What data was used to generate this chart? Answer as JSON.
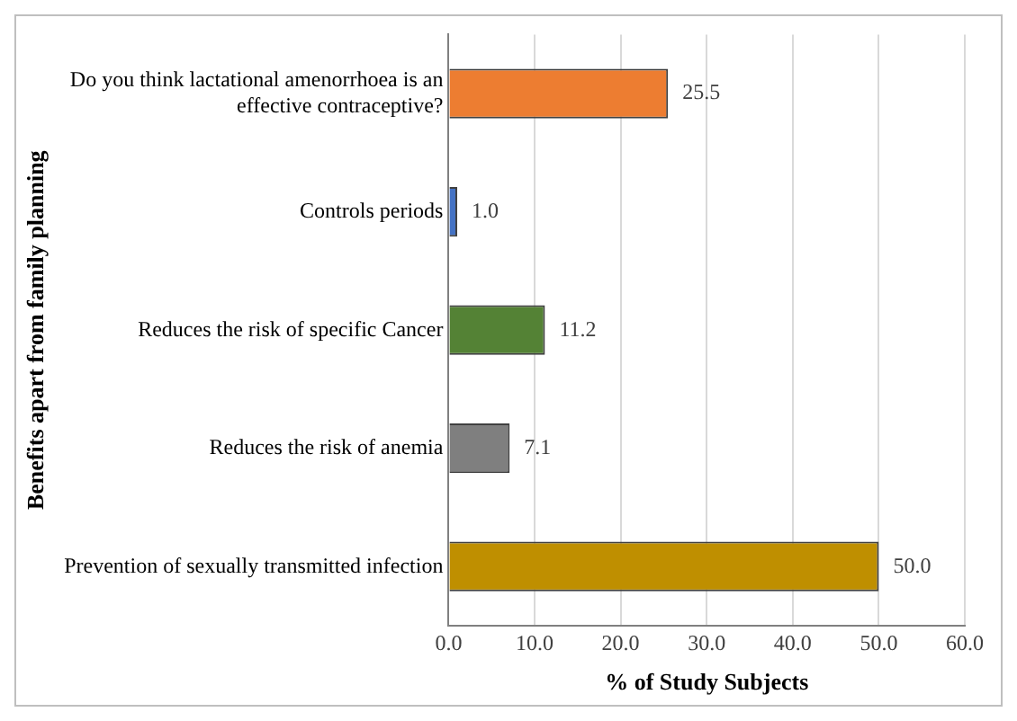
{
  "chart_data": {
    "type": "bar",
    "orientation": "horizontal",
    "xlabel": "% of Study Subjects",
    "ylabel": "Benefits apart from family planning",
    "categories": [
      "Do you think lactational amenorrhoea is an effective contraceptive?",
      "Controls periods",
      "Reduces the risk of specific Cancer",
      "Reduces the risk of anemia",
      "Prevention of sexually transmitted infection"
    ],
    "values": [
      25.5,
      1.0,
      11.2,
      7.1,
      50.0
    ],
    "colors": [
      "#ed7d31",
      "#4472c4",
      "#548235",
      "#7f7f7f",
      "#bf8f00"
    ],
    "xlim": [
      0,
      60
    ],
    "xticks": [
      {
        "value": 0,
        "label": "0.0"
      },
      {
        "value": 10,
        "label": "10.0"
      },
      {
        "value": 20,
        "label": "20.0"
      },
      {
        "value": 30,
        "label": "30.0"
      },
      {
        "value": 40,
        "label": "40.0"
      },
      {
        "value": 50,
        "label": "50.0"
      },
      {
        "value": 60,
        "label": "60.0"
      }
    ],
    "value_labels": [
      "25.5",
      "1.0",
      "11.2",
      "7.1",
      "50.0"
    ],
    "grid": "x",
    "legend": false
  }
}
